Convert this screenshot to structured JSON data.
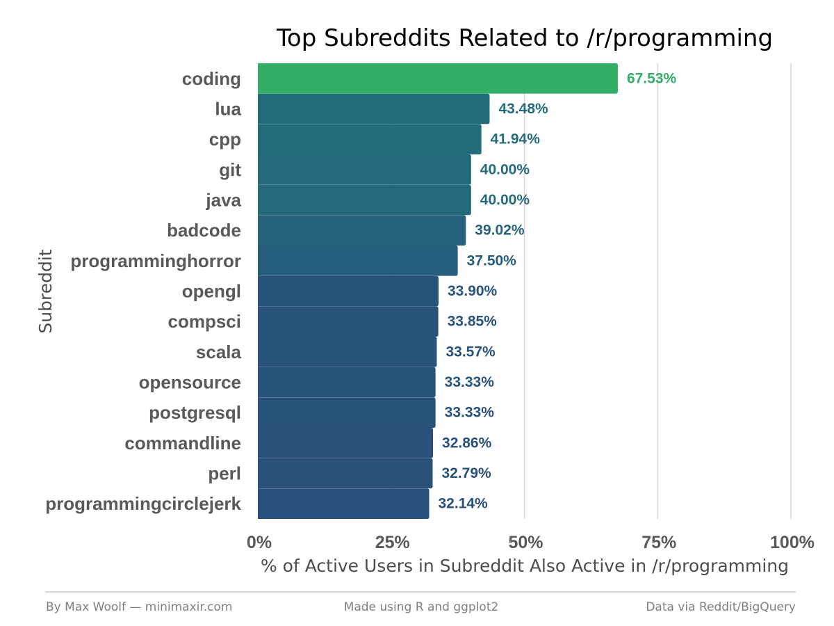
{
  "chart_data": {
    "type": "bar",
    "orientation": "horizontal",
    "title": "Top Subreddits Related to /r/programming",
    "xlabel": "% of Active Users in Subreddit Also Active in /r/programming",
    "ylabel": "Subreddit",
    "xlim": [
      0,
      100
    ],
    "x_ticks": [
      "0%",
      "25%",
      "50%",
      "75%",
      "100%"
    ],
    "grid": "vertical major gridlines",
    "categories": [
      "coding",
      "lua",
      "cpp",
      "git",
      "java",
      "badcode",
      "programminghorror",
      "opengl",
      "compsci",
      "scala",
      "opensource",
      "postgresql",
      "commandline",
      "perl",
      "programmingcirclejerk"
    ],
    "values": [
      67.53,
      43.48,
      41.94,
      40.0,
      40.0,
      39.02,
      37.5,
      33.9,
      33.85,
      33.57,
      33.33,
      33.33,
      32.86,
      32.79,
      32.14
    ],
    "value_labels": [
      "67.53%",
      "43.48%",
      "41.94%",
      "40.00%",
      "40.00%",
      "39.02%",
      "37.50%",
      "33.90%",
      "33.85%",
      "33.57%",
      "33.33%",
      "33.33%",
      "32.86%",
      "32.79%",
      "32.14%"
    ],
    "bar_colors": [
      "#32ae66",
      "#236d7b",
      "#236d7b",
      "#246a7c",
      "#246a7c",
      "#25637d",
      "#265d7d",
      "#28537b",
      "#28537b",
      "#28537b",
      "#28537b",
      "#28537b",
      "#29517a",
      "#29517a",
      "#29507a"
    ],
    "color_scale": {
      "low": "#29507a",
      "high": "#32ae66"
    }
  },
  "footer": {
    "left": "By Max Woolf — minimaxir.com",
    "center": "Made using R and ggplot2",
    "right": "Data via Reddit/BigQuery"
  },
  "colors": {
    "gridline": "#d9d9d9",
    "axis_text": "#595959",
    "footer_text": "#808080",
    "footer_rule": "#cccccc"
  }
}
